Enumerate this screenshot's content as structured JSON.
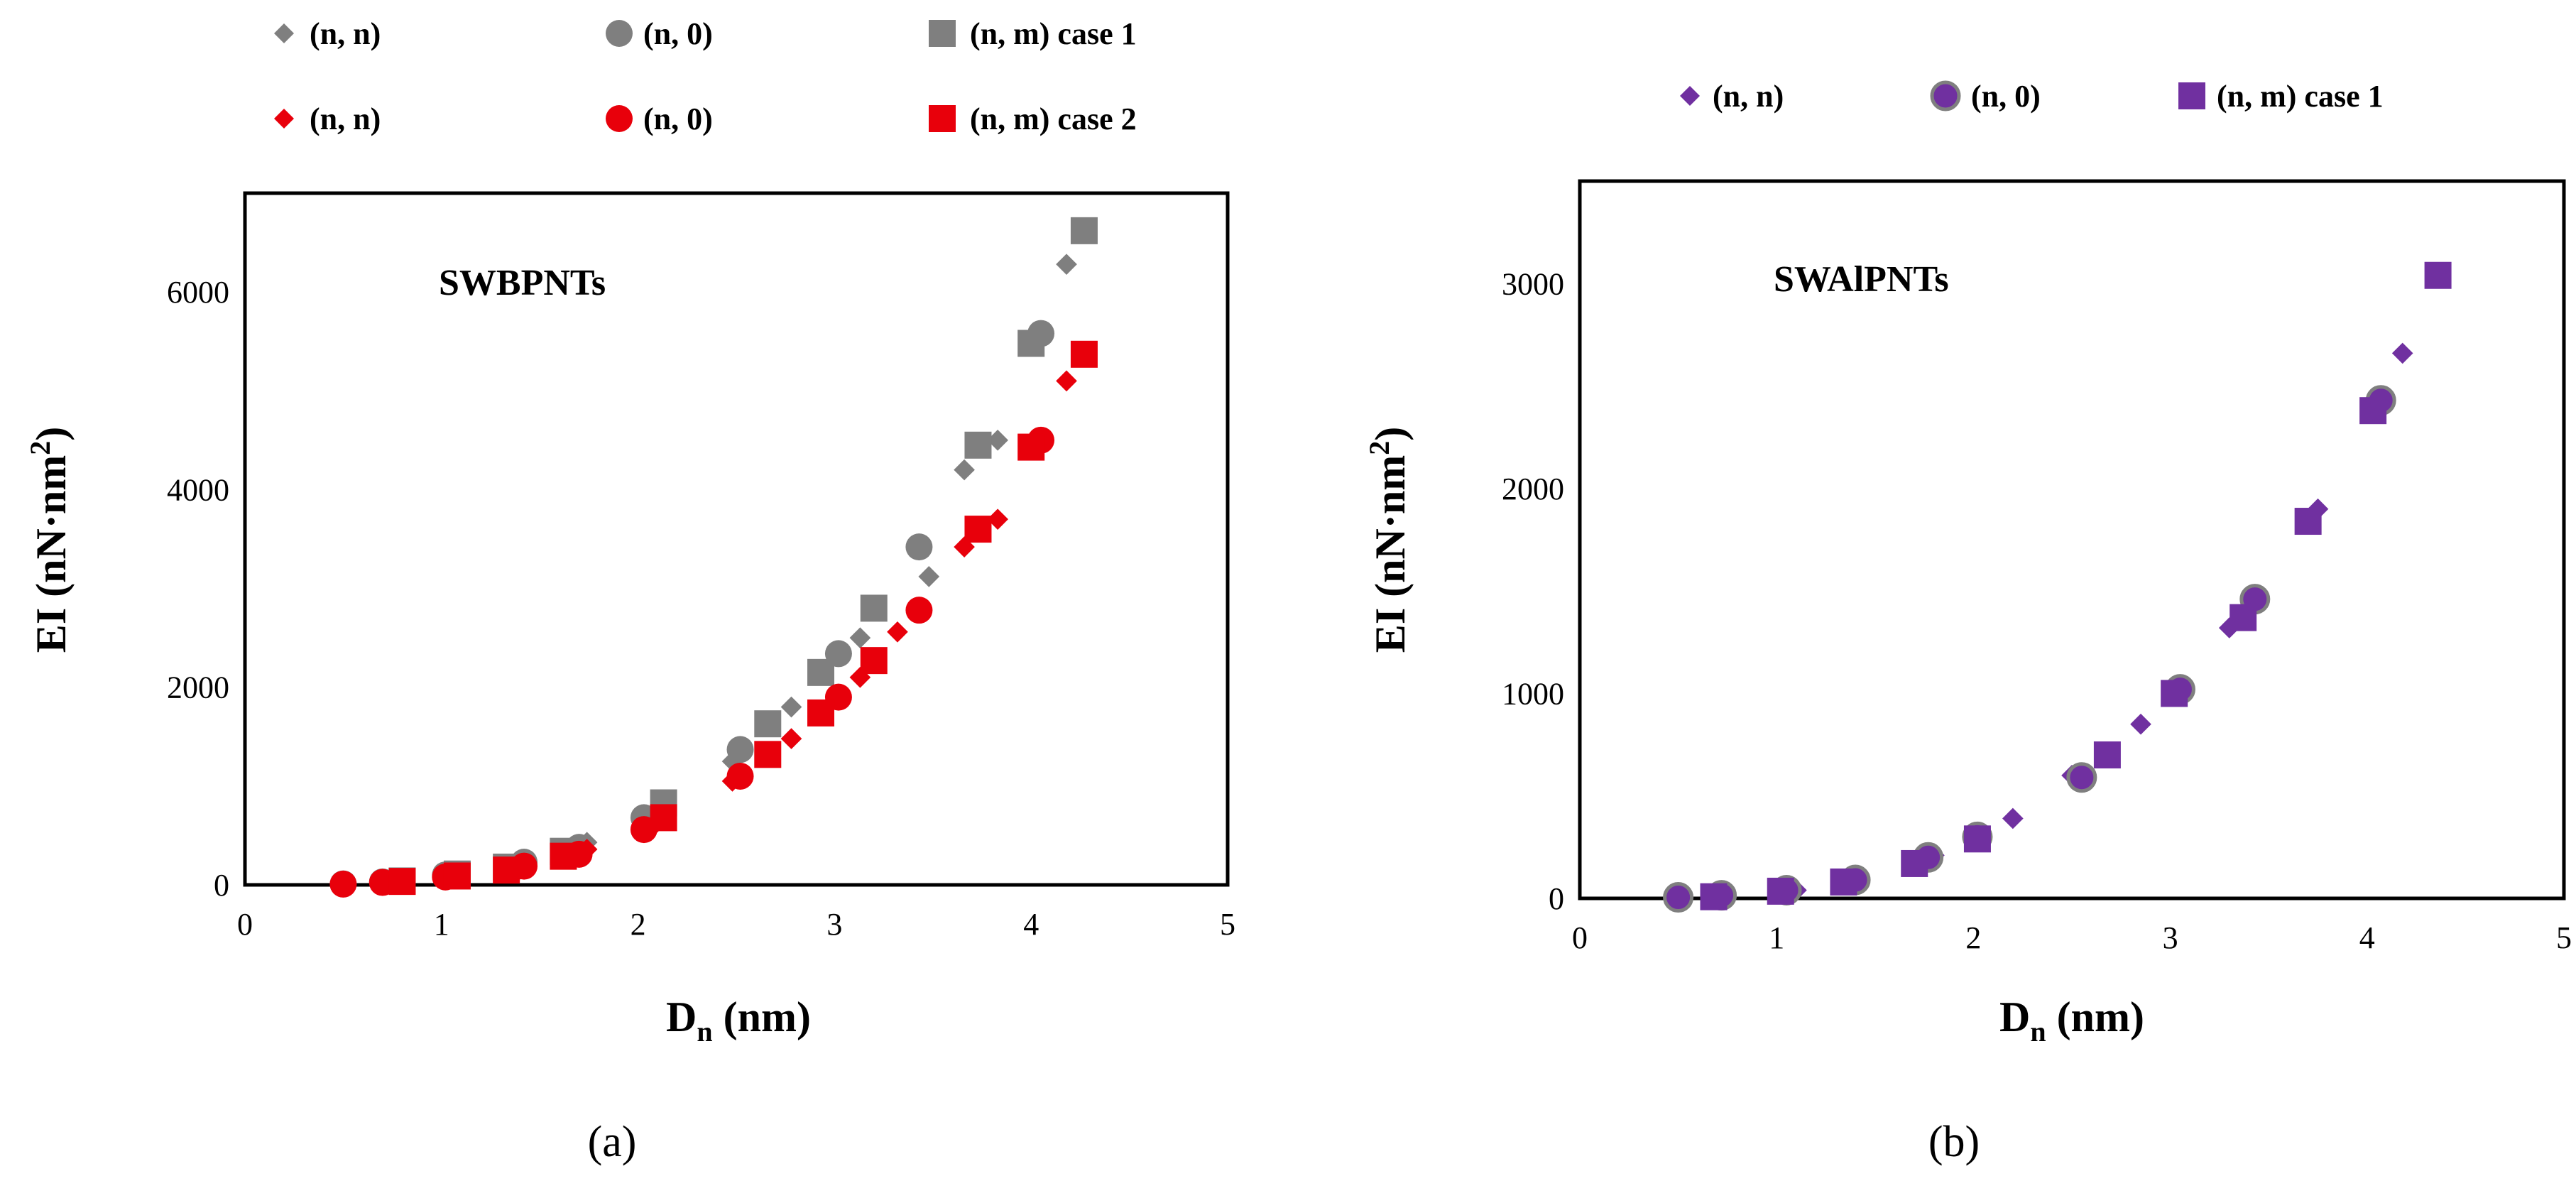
{
  "chart_data": [
    {
      "type": "scatter",
      "panel_label": "(a)",
      "title": "SWBPNTs",
      "xlabel": "D",
      "xlabel_sub": "n",
      "xlabel_unit": " (nm)",
      "ylabel": "EI (nN·nm",
      "ylabel_sup": "2",
      "ylabel_end": ")",
      "xlim": [
        0,
        5
      ],
      "ylim": [
        0,
        7000
      ],
      "xticks": [
        "0",
        "1",
        "2",
        "3",
        "4",
        "5"
      ],
      "yticks": [
        "0",
        "2000",
        "4000",
        "6000"
      ],
      "ytick_values": [
        0,
        2000,
        4000,
        6000
      ],
      "legend_position": "top",
      "series": [
        {
          "name": "(n, n)",
          "marker": "diamond",
          "color": "#7f7f7f",
          "x": [
            0.7,
            1.05,
            1.4,
            1.74,
            2.09,
            2.48,
            2.78,
            3.13,
            3.48,
            3.66,
            3.83,
            4.18
          ],
          "y": [
            20,
            70,
            200,
            430,
            750,
            1250,
            1800,
            2500,
            3120,
            4200,
            4500,
            6280
          ]
        },
        {
          "name": "(n, 0)",
          "marker": "circle",
          "color": "#7f7f7f",
          "x": [
            0.5,
            0.7,
            1.02,
            1.42,
            1.7,
            2.03,
            2.52,
            3.02,
            3.43,
            4.05
          ],
          "y": [
            10,
            30,
            100,
            230,
            380,
            680,
            1370,
            2340,
            3420,
            5580
          ]
        },
        {
          "name": "(n, m) case 1",
          "marker": "square",
          "color": "#7f7f7f",
          "x": [
            0.8,
            1.08,
            1.33,
            1.62,
            2.13,
            2.66,
            2.93,
            3.2,
            3.73,
            4.0,
            4.27
          ],
          "y": [
            40,
            110,
            180,
            340,
            830,
            1630,
            2150,
            2800,
            4450,
            5480,
            6620
          ]
        },
        {
          "name": "(n, n)",
          "marker": "diamond",
          "color": "#e8000b",
          "x": [
            0.7,
            1.05,
            1.4,
            1.74,
            2.09,
            2.48,
            2.78,
            3.13,
            3.32,
            3.66,
            3.83,
            4.18
          ],
          "y": [
            15,
            60,
            160,
            360,
            620,
            1050,
            1480,
            2100,
            2560,
            3420,
            3700,
            5100
          ]
        },
        {
          "name": "(n, 0)",
          "marker": "circle",
          "color": "#e8000b",
          "x": [
            0.5,
            0.7,
            1.02,
            1.42,
            1.7,
            2.03,
            2.52,
            3.02,
            3.43,
            4.05
          ],
          "y": [
            8,
            25,
            80,
            190,
            310,
            560,
            1100,
            1900,
            2780,
            4500
          ]
        },
        {
          "name": "(n, m) case 2",
          "marker": "square",
          "color": "#e8000b",
          "x": [
            0.8,
            1.08,
            1.33,
            1.62,
            2.13,
            2.66,
            2.93,
            3.2,
            3.73,
            4.0,
            4.27
          ],
          "y": [
            35,
            90,
            150,
            290,
            680,
            1320,
            1740,
            2270,
            3600,
            4430,
            5370
          ]
        }
      ]
    },
    {
      "type": "scatter",
      "panel_label": "(b)",
      "title": "SWAlPNTs",
      "xlabel": "D",
      "xlabel_sub": "n",
      "xlabel_unit": " (nm)",
      "ylabel": "EI (nN·nm",
      "ylabel_sup": "2",
      "ylabel_end": ")",
      "xlim": [
        0,
        5
      ],
      "ylim": [
        0,
        3500
      ],
      "xticks": [
        "0",
        "1",
        "2",
        "3",
        "4",
        "5"
      ],
      "yticks": [
        "0",
        "1000",
        "2000",
        "3000"
      ],
      "ytick_values": [
        0,
        1000,
        2000,
        3000
      ],
      "legend_position": "top",
      "series": [
        {
          "name": "(n, n)",
          "marker": "diamond",
          "color": "#7030a0",
          "x": [
            0.73,
            1.1,
            1.38,
            1.8,
            2.2,
            2.5,
            2.85,
            3.3,
            3.45,
            3.75,
            4.18
          ],
          "y": [
            8,
            40,
            90,
            210,
            390,
            600,
            850,
            1320,
            1450,
            1900,
            2660
          ]
        },
        {
          "name": "(n, 0)",
          "marker": "circle",
          "color": "#7030a0",
          "x": [
            0.5,
            0.72,
            1.05,
            1.4,
            1.77,
            2.02,
            2.55,
            3.05,
            3.43,
            4.07
          ],
          "y": [
            5,
            15,
            40,
            90,
            200,
            300,
            590,
            1020,
            1460,
            2430
          ]
        },
        {
          "name": "(n, m) case 1",
          "marker": "square",
          "color": "#7030a0",
          "x": [
            0.68,
            1.02,
            1.34,
            1.7,
            2.02,
            2.68,
            3.02,
            3.37,
            3.7,
            4.03,
            4.36
          ],
          "y": [
            8,
            35,
            80,
            170,
            290,
            700,
            1000,
            1370,
            1840,
            2380,
            3040
          ]
        }
      ]
    }
  ]
}
